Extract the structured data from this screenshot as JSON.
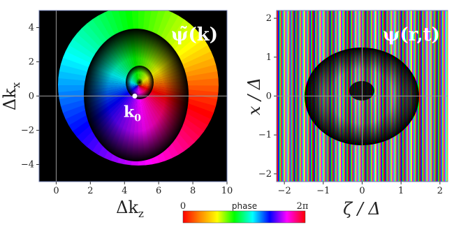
{
  "chart_data": [
    {
      "type": "heatmap",
      "plot_label": "ψ̃(k)",
      "xlabel": "Δk",
      "xlabel_sub": "z",
      "ylabel": "Δk",
      "ylabel_sub": "x",
      "xlim": [
        -1,
        10
      ],
      "ylim": [
        -5,
        5
      ],
      "x_ticks": [
        0,
        2,
        4,
        6,
        8,
        10
      ],
      "x_tick_labels": [
        "0",
        "2",
        "4",
        "6",
        "8",
        "10"
      ],
      "y_ticks": [
        -4,
        -2,
        0,
        2,
        4
      ],
      "y_tick_labels": [
        "−4",
        "−2",
        "0",
        "2",
        "4"
      ],
      "crosshair": {
        "x": 0,
        "y": 0
      },
      "point": {
        "x": 4.6,
        "y": 0,
        "label": "k",
        "label_sub": "0"
      },
      "background_color": "#000000"
    },
    {
      "type": "heatmap",
      "plot_label": "ψ(r,t)",
      "xlabel": "ζ / Δ",
      "ylabel": "x / Δ",
      "xlim": [
        -2.2,
        2.2
      ],
      "ylim": [
        -2.2,
        2.2
      ],
      "x_ticks": [
        -2,
        -1,
        0,
        1,
        2
      ],
      "x_tick_labels": [
        "−2",
        "−1",
        "0",
        "1",
        "2"
      ],
      "y_ticks": [
        -2,
        -1,
        0,
        1,
        2
      ],
      "y_tick_labels": [
        "−2",
        "−1",
        "0",
        "1",
        "2"
      ],
      "crosshair": {
        "x": 0,
        "y": 0
      },
      "background_color": "#000000"
    }
  ],
  "colorbar": {
    "title": "phase",
    "min_label": "0",
    "max_label": "2π",
    "colors": [
      "#ff0000",
      "#ff8800",
      "#ffff00",
      "#00ff00",
      "#00ffff",
      "#0000ff",
      "#ff00ff",
      "#ff0000"
    ]
  }
}
